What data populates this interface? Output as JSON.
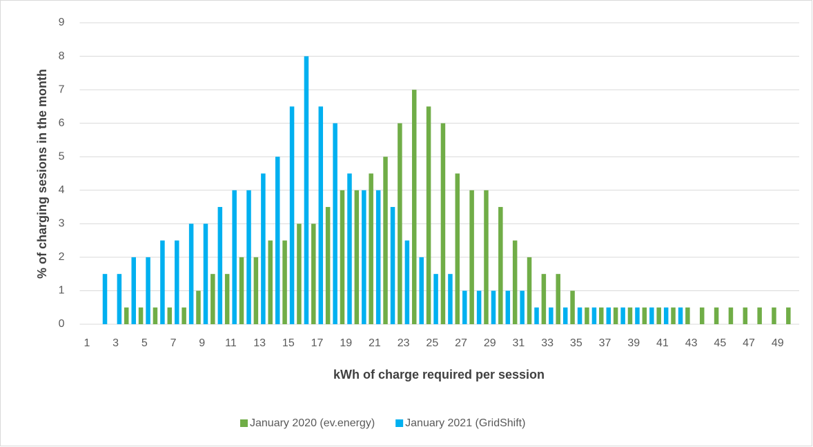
{
  "chart_data": {
    "type": "bar",
    "x_label": "kWh of charge required per session",
    "y_label": "% of charging sesions in the month",
    "categories": [
      "1",
      null,
      "3",
      null,
      "5",
      null,
      "7",
      null,
      "9",
      null,
      "11",
      null,
      "13",
      null,
      "15",
      null,
      "17",
      null,
      "19",
      null,
      "21",
      null,
      "23",
      null,
      "25",
      null,
      "27",
      null,
      "29",
      null,
      "31",
      null,
      "33",
      null,
      "35",
      null,
      "37",
      null,
      "39",
      null,
      "41",
      null,
      "43",
      null,
      "45",
      null,
      "47",
      null,
      "49",
      null
    ],
    "series": [
      {
        "name": "January 2020 (ev.energy)",
        "color": "#70ad47",
        "values": [
          0,
          0,
          0,
          0.5,
          0.5,
          0.5,
          0.5,
          0.5,
          1,
          1.5,
          1.5,
          2,
          2,
          2.5,
          2.5,
          3,
          3,
          3.5,
          4,
          4,
          4.5,
          5,
          6,
          7,
          6.5,
          6,
          4.5,
          4,
          4,
          3.5,
          2.5,
          2,
          1.5,
          1.5,
          1,
          0.5,
          0.5,
          0.5,
          0.5,
          0.5,
          0.5,
          0.5,
          0.5,
          0.5,
          0.5,
          0.5,
          0.5,
          0.5,
          0.5,
          0.5
        ]
      },
      {
        "name": "January 2021 (GridShift)",
        "color": "#00b0f0",
        "values": [
          0,
          1.5,
          1.5,
          2,
          2,
          2.5,
          2.5,
          3,
          3,
          3.5,
          4,
          4,
          4.5,
          5,
          6.5,
          8,
          6.5,
          6,
          4.5,
          4,
          4,
          3.5,
          2.5,
          2,
          1.5,
          1.5,
          1,
          1,
          1,
          1,
          1,
          0.5,
          0.5,
          0.5,
          0.5,
          0.5,
          0.5,
          0.5,
          0.5,
          0.5,
          0.5,
          0.5,
          0,
          0,
          0,
          0,
          0,
          0,
          0,
          0
        ]
      }
    ],
    "ylim": [
      0,
      9
    ],
    "yticks": [
      0,
      1,
      2,
      3,
      4,
      5,
      6,
      7,
      8,
      9
    ],
    "grid": true,
    "legend": "bottom"
  }
}
